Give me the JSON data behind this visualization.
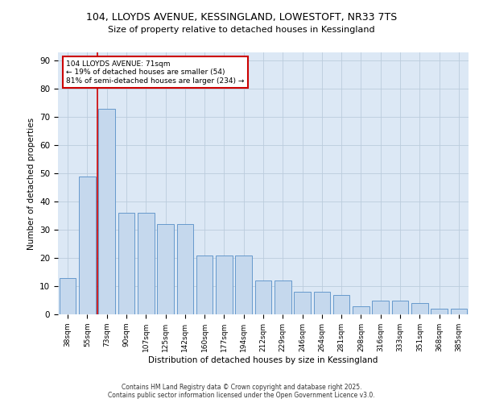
{
  "title_line1": "104, LLOYDS AVENUE, KESSINGLAND, LOWESTOFT, NR33 7TS",
  "title_line2": "Size of property relative to detached houses in Kessingland",
  "xlabel": "Distribution of detached houses by size in Kessingland",
  "ylabel": "Number of detached properties",
  "categories": [
    "38sqm",
    "55sqm",
    "73sqm",
    "90sqm",
    "107sqm",
    "125sqm",
    "142sqm",
    "160sqm",
    "177sqm",
    "194sqm",
    "212sqm",
    "229sqm",
    "246sqm",
    "264sqm",
    "281sqm",
    "298sqm",
    "316sqm",
    "333sqm",
    "351sqm",
    "368sqm",
    "385sqm"
  ],
  "values": [
    13,
    49,
    73,
    36,
    36,
    32,
    32,
    21,
    21,
    21,
    12,
    12,
    8,
    8,
    7,
    3,
    5,
    5,
    4,
    2,
    2
  ],
  "bar_color": "#c5d8ed",
  "bar_edge_color": "#6699cc",
  "bar_edge_width": 0.7,
  "vline_color": "#cc0000",
  "annotation_title": "104 LLOYDS AVENUE: 71sqm",
  "annotation_line1": "← 19% of detached houses are smaller (54)",
  "annotation_line2": "81% of semi-detached houses are larger (234) →",
  "annotation_box_color": "#cc0000",
  "ylim": [
    0,
    93
  ],
  "yticks": [
    0,
    10,
    20,
    30,
    40,
    50,
    60,
    70,
    80,
    90
  ],
  "grid_color": "#bbccdd",
  "background_color": "#dce8f5",
  "footer_line1": "Contains HM Land Registry data © Crown copyright and database right 2025.",
  "footer_line2": "Contains public sector information licensed under the Open Government Licence v3.0."
}
